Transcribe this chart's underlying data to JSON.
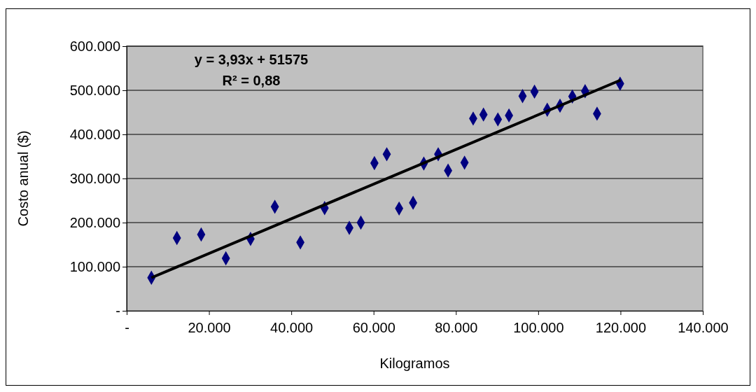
{
  "chart_data": {
    "type": "scatter",
    "xlabel": "Kilogramos",
    "ylabel": "Costo anual ($)",
    "annotations": [
      "y = 3,93x + 51575",
      "R² = 0,88"
    ],
    "series": [
      {
        "color": "#000080",
        "marker": "diamond",
        "x": [
          6000,
          12200,
          18100,
          24100,
          30100,
          36000,
          42200,
          48100,
          54100,
          56900,
          60200,
          63200,
          66200,
          69600,
          72200,
          75700,
          78100,
          82100,
          84200,
          86700,
          90200,
          92900,
          96200,
          99100,
          102200,
          105300,
          108300,
          111400,
          114300,
          119900
        ],
        "values": [
          75000,
          165000,
          173000,
          119000,
          163000,
          236000,
          155000,
          233000,
          188000,
          200000,
          335000,
          355000,
          232000,
          245000,
          334000,
          355000,
          318000,
          336000,
          436000,
          445000,
          434000,
          443000,
          487000,
          497000,
          456000,
          465000,
          486000,
          498000,
          447000,
          515000
        ]
      },
      {
        "type": "line",
        "color": "#000000",
        "line_style": "solid",
        "x": [
          6000,
          120000
        ],
        "values": [
          75000,
          523000
        ]
      }
    ],
    "xlim": [
      0,
      140000
    ],
    "ylim": [
      0,
      600000
    ],
    "xticks": [
      {
        "value": 0,
        "label": "-"
      },
      {
        "value": 20000,
        "label": "20.000"
      },
      {
        "value": 40000,
        "label": "40.000"
      },
      {
        "value": 60000,
        "label": "60.000"
      },
      {
        "value": 80000,
        "label": "80.000"
      },
      {
        "value": 100000,
        "label": "100.000"
      },
      {
        "value": 120000,
        "label": "120.000"
      },
      {
        "value": 140000,
        "label": "140.000"
      }
    ],
    "yticks": [
      {
        "value": 0,
        "label": "-"
      },
      {
        "value": 100000,
        "label": "100.000"
      },
      {
        "value": 200000,
        "label": "200.000"
      },
      {
        "value": 300000,
        "label": "300.000"
      },
      {
        "value": 400000,
        "label": "400.000"
      },
      {
        "value": 500000,
        "label": "500.000"
      },
      {
        "value": 600000,
        "label": "600.000"
      }
    ],
    "grid": "y"
  }
}
